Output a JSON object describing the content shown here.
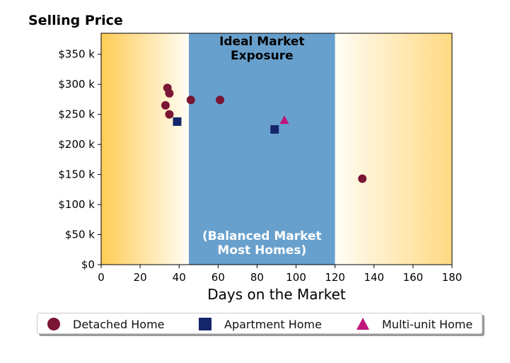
{
  "chart_data": {
    "type": "scatter",
    "title": "Selling Price",
    "xlabel": "Days on the Market",
    "ylabel": "",
    "xlim": [
      0,
      180
    ],
    "ylim": [
      0,
      385000
    ],
    "x_ticks": [
      0,
      20,
      40,
      60,
      80,
      100,
      120,
      140,
      160,
      180
    ],
    "x_tick_labels": [
      "0",
      "20",
      "40",
      "60",
      "80",
      "100",
      "120",
      "140",
      "160",
      "180"
    ],
    "y_ticks": [
      0,
      50000,
      100000,
      150000,
      200000,
      250000,
      300000,
      350000
    ],
    "y_tick_labels": [
      "$0",
      "$50 k",
      "$100 k",
      "$150 k",
      "$200 k",
      "$250 k",
      "$300 k",
      "$350 k"
    ],
    "grid": false,
    "legend_position": "bottom",
    "regions": [
      {
        "x_start": 0,
        "x_end": 45,
        "fill": "gradient",
        "from_color": "#ffcc55",
        "to_color": "#fffdf5"
      },
      {
        "x_start": 45,
        "x_end": 120,
        "fill": "solid",
        "color": "#68a0cd",
        "label_top": [
          "Ideal Market",
          "Exposure"
        ],
        "label_bottom": [
          "(Balanced Market",
          "Most Homes)"
        ]
      },
      {
        "x_start": 120,
        "x_end": 180,
        "fill": "gradient",
        "from_color": "#fffdf5",
        "to_color": "#ffd982"
      }
    ],
    "series": [
      {
        "name": "Detached Home",
        "marker": "circle",
        "color": "#7b1535",
        "points": [
          {
            "x": 34,
            "y": 294000
          },
          {
            "x": 35,
            "y": 285000
          },
          {
            "x": 33,
            "y": 265000
          },
          {
            "x": 35,
            "y": 250000
          },
          {
            "x": 46,
            "y": 274000
          },
          {
            "x": 61,
            "y": 274000
          },
          {
            "x": 134,
            "y": 143000
          }
        ]
      },
      {
        "name": "Apartment Home",
        "marker": "square",
        "color": "#13256b",
        "points": [
          {
            "x": 39,
            "y": 238000
          },
          {
            "x": 89,
            "y": 225000
          }
        ]
      },
      {
        "name": "Multi-unit Home",
        "marker": "triangle",
        "color": "#c0157a",
        "points": [
          {
            "x": 94,
            "y": 240000
          }
        ]
      }
    ]
  }
}
